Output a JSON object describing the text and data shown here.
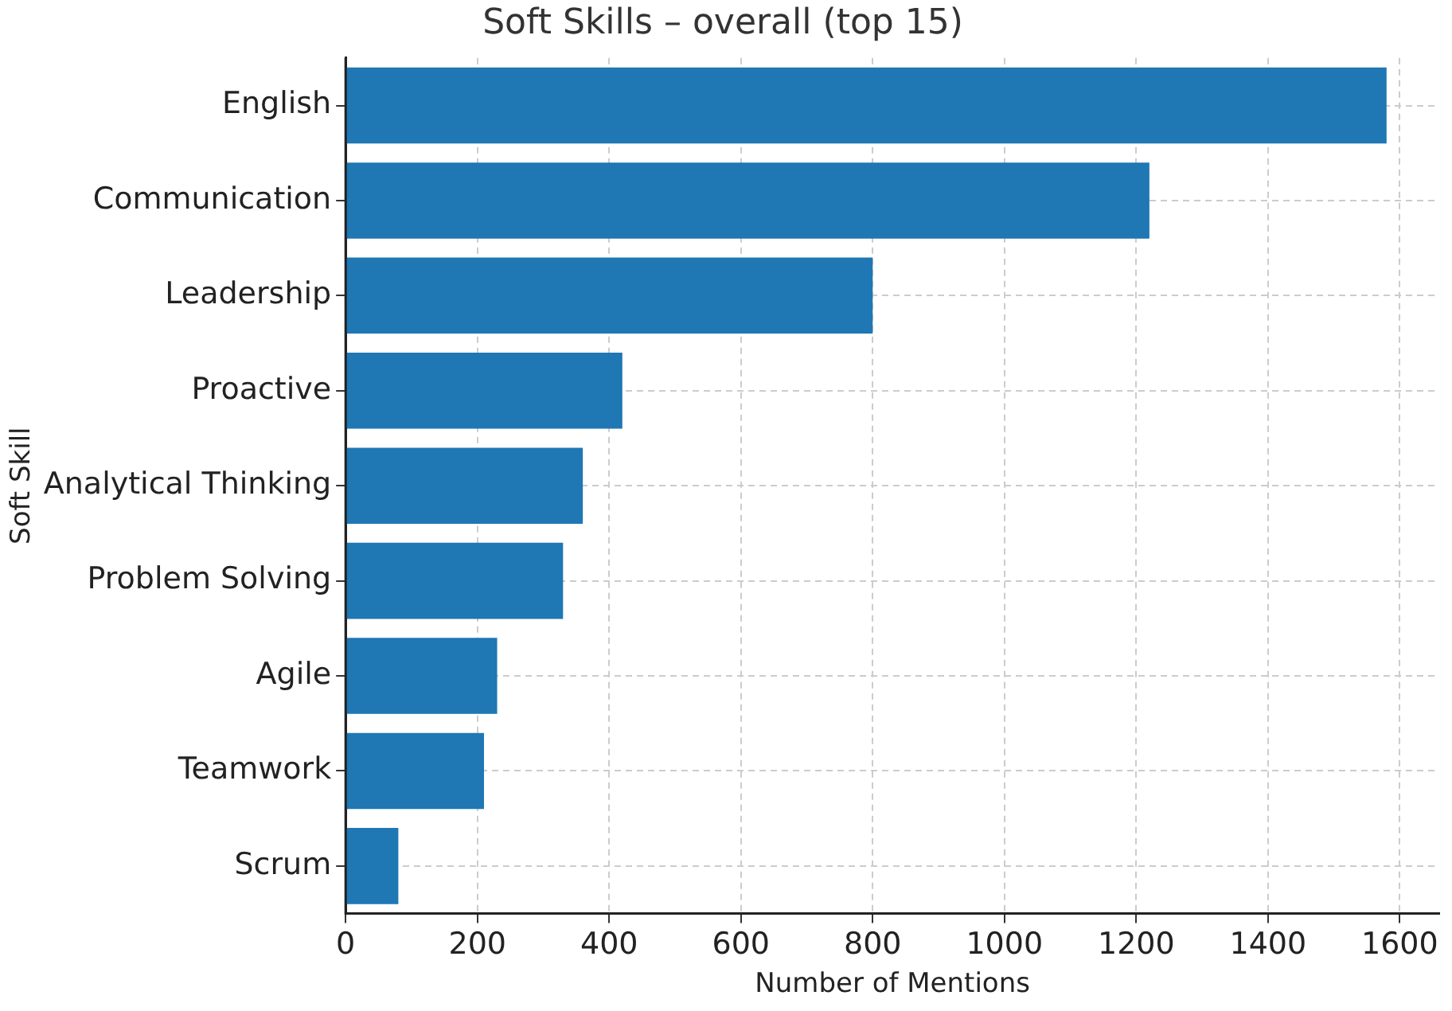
{
  "chart_data": {
    "type": "bar",
    "orientation": "horizontal",
    "title": "Soft Skills – overall (top 15)",
    "xlabel": "Number of Mentions",
    "ylabel": "Soft Skill",
    "categories": [
      "English",
      "Communication",
      "Leadership",
      "Proactive",
      "Analytical Thinking",
      "Problem Solving",
      "Agile",
      "Teamwork",
      "Scrum"
    ],
    "values": [
      1580,
      1220,
      800,
      420,
      360,
      330,
      230,
      210,
      80
    ],
    "color": "#1f77b4",
    "xlim": [
      0,
      1660
    ],
    "xticks": [
      0,
      200,
      400,
      600,
      800,
      1000,
      1200,
      1400,
      1600
    ],
    "grid": true
  }
}
